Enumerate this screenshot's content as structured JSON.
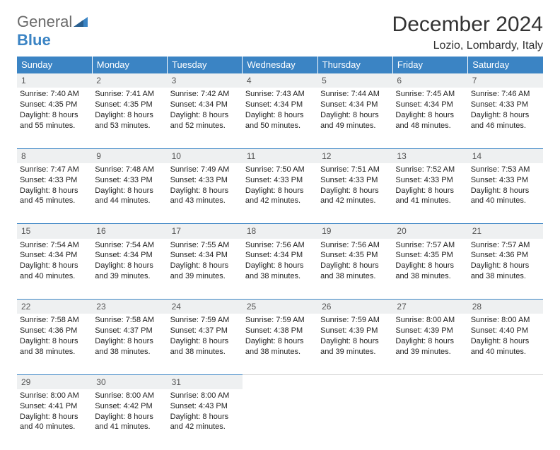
{
  "brand": {
    "general": "General",
    "blue": "Blue"
  },
  "header": {
    "month_title": "December 2024",
    "location": "Lozio, Lombardy, Italy"
  },
  "style": {
    "header_bg": "#3b84c4",
    "header_text": "#ffffff",
    "daynum_bg": "#eef0f1",
    "row_border": "#3b84c4",
    "body_text": "#222222",
    "page_bg": "#ffffff",
    "font_family": "Arial",
    "title_fontsize_pt": 22,
    "location_fontsize_pt": 12,
    "header_fontsize_pt": 10,
    "cell_fontsize_pt": 8
  },
  "weekdays": [
    "Sunday",
    "Monday",
    "Tuesday",
    "Wednesday",
    "Thursday",
    "Friday",
    "Saturday"
  ],
  "weeks": [
    [
      {
        "n": "1",
        "sr": "Sunrise: 7:40 AM",
        "ss": "Sunset: 4:35 PM",
        "dl": "Daylight: 8 hours and 55 minutes."
      },
      {
        "n": "2",
        "sr": "Sunrise: 7:41 AM",
        "ss": "Sunset: 4:35 PM",
        "dl": "Daylight: 8 hours and 53 minutes."
      },
      {
        "n": "3",
        "sr": "Sunrise: 7:42 AM",
        "ss": "Sunset: 4:34 PM",
        "dl": "Daylight: 8 hours and 52 minutes."
      },
      {
        "n": "4",
        "sr": "Sunrise: 7:43 AM",
        "ss": "Sunset: 4:34 PM",
        "dl": "Daylight: 8 hours and 50 minutes."
      },
      {
        "n": "5",
        "sr": "Sunrise: 7:44 AM",
        "ss": "Sunset: 4:34 PM",
        "dl": "Daylight: 8 hours and 49 minutes."
      },
      {
        "n": "6",
        "sr": "Sunrise: 7:45 AM",
        "ss": "Sunset: 4:34 PM",
        "dl": "Daylight: 8 hours and 48 minutes."
      },
      {
        "n": "7",
        "sr": "Sunrise: 7:46 AM",
        "ss": "Sunset: 4:33 PM",
        "dl": "Daylight: 8 hours and 46 minutes."
      }
    ],
    [
      {
        "n": "8",
        "sr": "Sunrise: 7:47 AM",
        "ss": "Sunset: 4:33 PM",
        "dl": "Daylight: 8 hours and 45 minutes."
      },
      {
        "n": "9",
        "sr": "Sunrise: 7:48 AM",
        "ss": "Sunset: 4:33 PM",
        "dl": "Daylight: 8 hours and 44 minutes."
      },
      {
        "n": "10",
        "sr": "Sunrise: 7:49 AM",
        "ss": "Sunset: 4:33 PM",
        "dl": "Daylight: 8 hours and 43 minutes."
      },
      {
        "n": "11",
        "sr": "Sunrise: 7:50 AM",
        "ss": "Sunset: 4:33 PM",
        "dl": "Daylight: 8 hours and 42 minutes."
      },
      {
        "n": "12",
        "sr": "Sunrise: 7:51 AM",
        "ss": "Sunset: 4:33 PM",
        "dl": "Daylight: 8 hours and 42 minutes."
      },
      {
        "n": "13",
        "sr": "Sunrise: 7:52 AM",
        "ss": "Sunset: 4:33 PM",
        "dl": "Daylight: 8 hours and 41 minutes."
      },
      {
        "n": "14",
        "sr": "Sunrise: 7:53 AM",
        "ss": "Sunset: 4:33 PM",
        "dl": "Daylight: 8 hours and 40 minutes."
      }
    ],
    [
      {
        "n": "15",
        "sr": "Sunrise: 7:54 AM",
        "ss": "Sunset: 4:34 PM",
        "dl": "Daylight: 8 hours and 40 minutes."
      },
      {
        "n": "16",
        "sr": "Sunrise: 7:54 AM",
        "ss": "Sunset: 4:34 PM",
        "dl": "Daylight: 8 hours and 39 minutes."
      },
      {
        "n": "17",
        "sr": "Sunrise: 7:55 AM",
        "ss": "Sunset: 4:34 PM",
        "dl": "Daylight: 8 hours and 39 minutes."
      },
      {
        "n": "18",
        "sr": "Sunrise: 7:56 AM",
        "ss": "Sunset: 4:34 PM",
        "dl": "Daylight: 8 hours and 38 minutes."
      },
      {
        "n": "19",
        "sr": "Sunrise: 7:56 AM",
        "ss": "Sunset: 4:35 PM",
        "dl": "Daylight: 8 hours and 38 minutes."
      },
      {
        "n": "20",
        "sr": "Sunrise: 7:57 AM",
        "ss": "Sunset: 4:35 PM",
        "dl": "Daylight: 8 hours and 38 minutes."
      },
      {
        "n": "21",
        "sr": "Sunrise: 7:57 AM",
        "ss": "Sunset: 4:36 PM",
        "dl": "Daylight: 8 hours and 38 minutes."
      }
    ],
    [
      {
        "n": "22",
        "sr": "Sunrise: 7:58 AM",
        "ss": "Sunset: 4:36 PM",
        "dl": "Daylight: 8 hours and 38 minutes."
      },
      {
        "n": "23",
        "sr": "Sunrise: 7:58 AM",
        "ss": "Sunset: 4:37 PM",
        "dl": "Daylight: 8 hours and 38 minutes."
      },
      {
        "n": "24",
        "sr": "Sunrise: 7:59 AM",
        "ss": "Sunset: 4:37 PM",
        "dl": "Daylight: 8 hours and 38 minutes."
      },
      {
        "n": "25",
        "sr": "Sunrise: 7:59 AM",
        "ss": "Sunset: 4:38 PM",
        "dl": "Daylight: 8 hours and 38 minutes."
      },
      {
        "n": "26",
        "sr": "Sunrise: 7:59 AM",
        "ss": "Sunset: 4:39 PM",
        "dl": "Daylight: 8 hours and 39 minutes."
      },
      {
        "n": "27",
        "sr": "Sunrise: 8:00 AM",
        "ss": "Sunset: 4:39 PM",
        "dl": "Daylight: 8 hours and 39 minutes."
      },
      {
        "n": "28",
        "sr": "Sunrise: 8:00 AM",
        "ss": "Sunset: 4:40 PM",
        "dl": "Daylight: 8 hours and 40 minutes."
      }
    ],
    [
      {
        "n": "29",
        "sr": "Sunrise: 8:00 AM",
        "ss": "Sunset: 4:41 PM",
        "dl": "Daylight: 8 hours and 40 minutes."
      },
      {
        "n": "30",
        "sr": "Sunrise: 8:00 AM",
        "ss": "Sunset: 4:42 PM",
        "dl": "Daylight: 8 hours and 41 minutes."
      },
      {
        "n": "31",
        "sr": "Sunrise: 8:00 AM",
        "ss": "Sunset: 4:43 PM",
        "dl": "Daylight: 8 hours and 42 minutes."
      },
      null,
      null,
      null,
      null
    ]
  ]
}
